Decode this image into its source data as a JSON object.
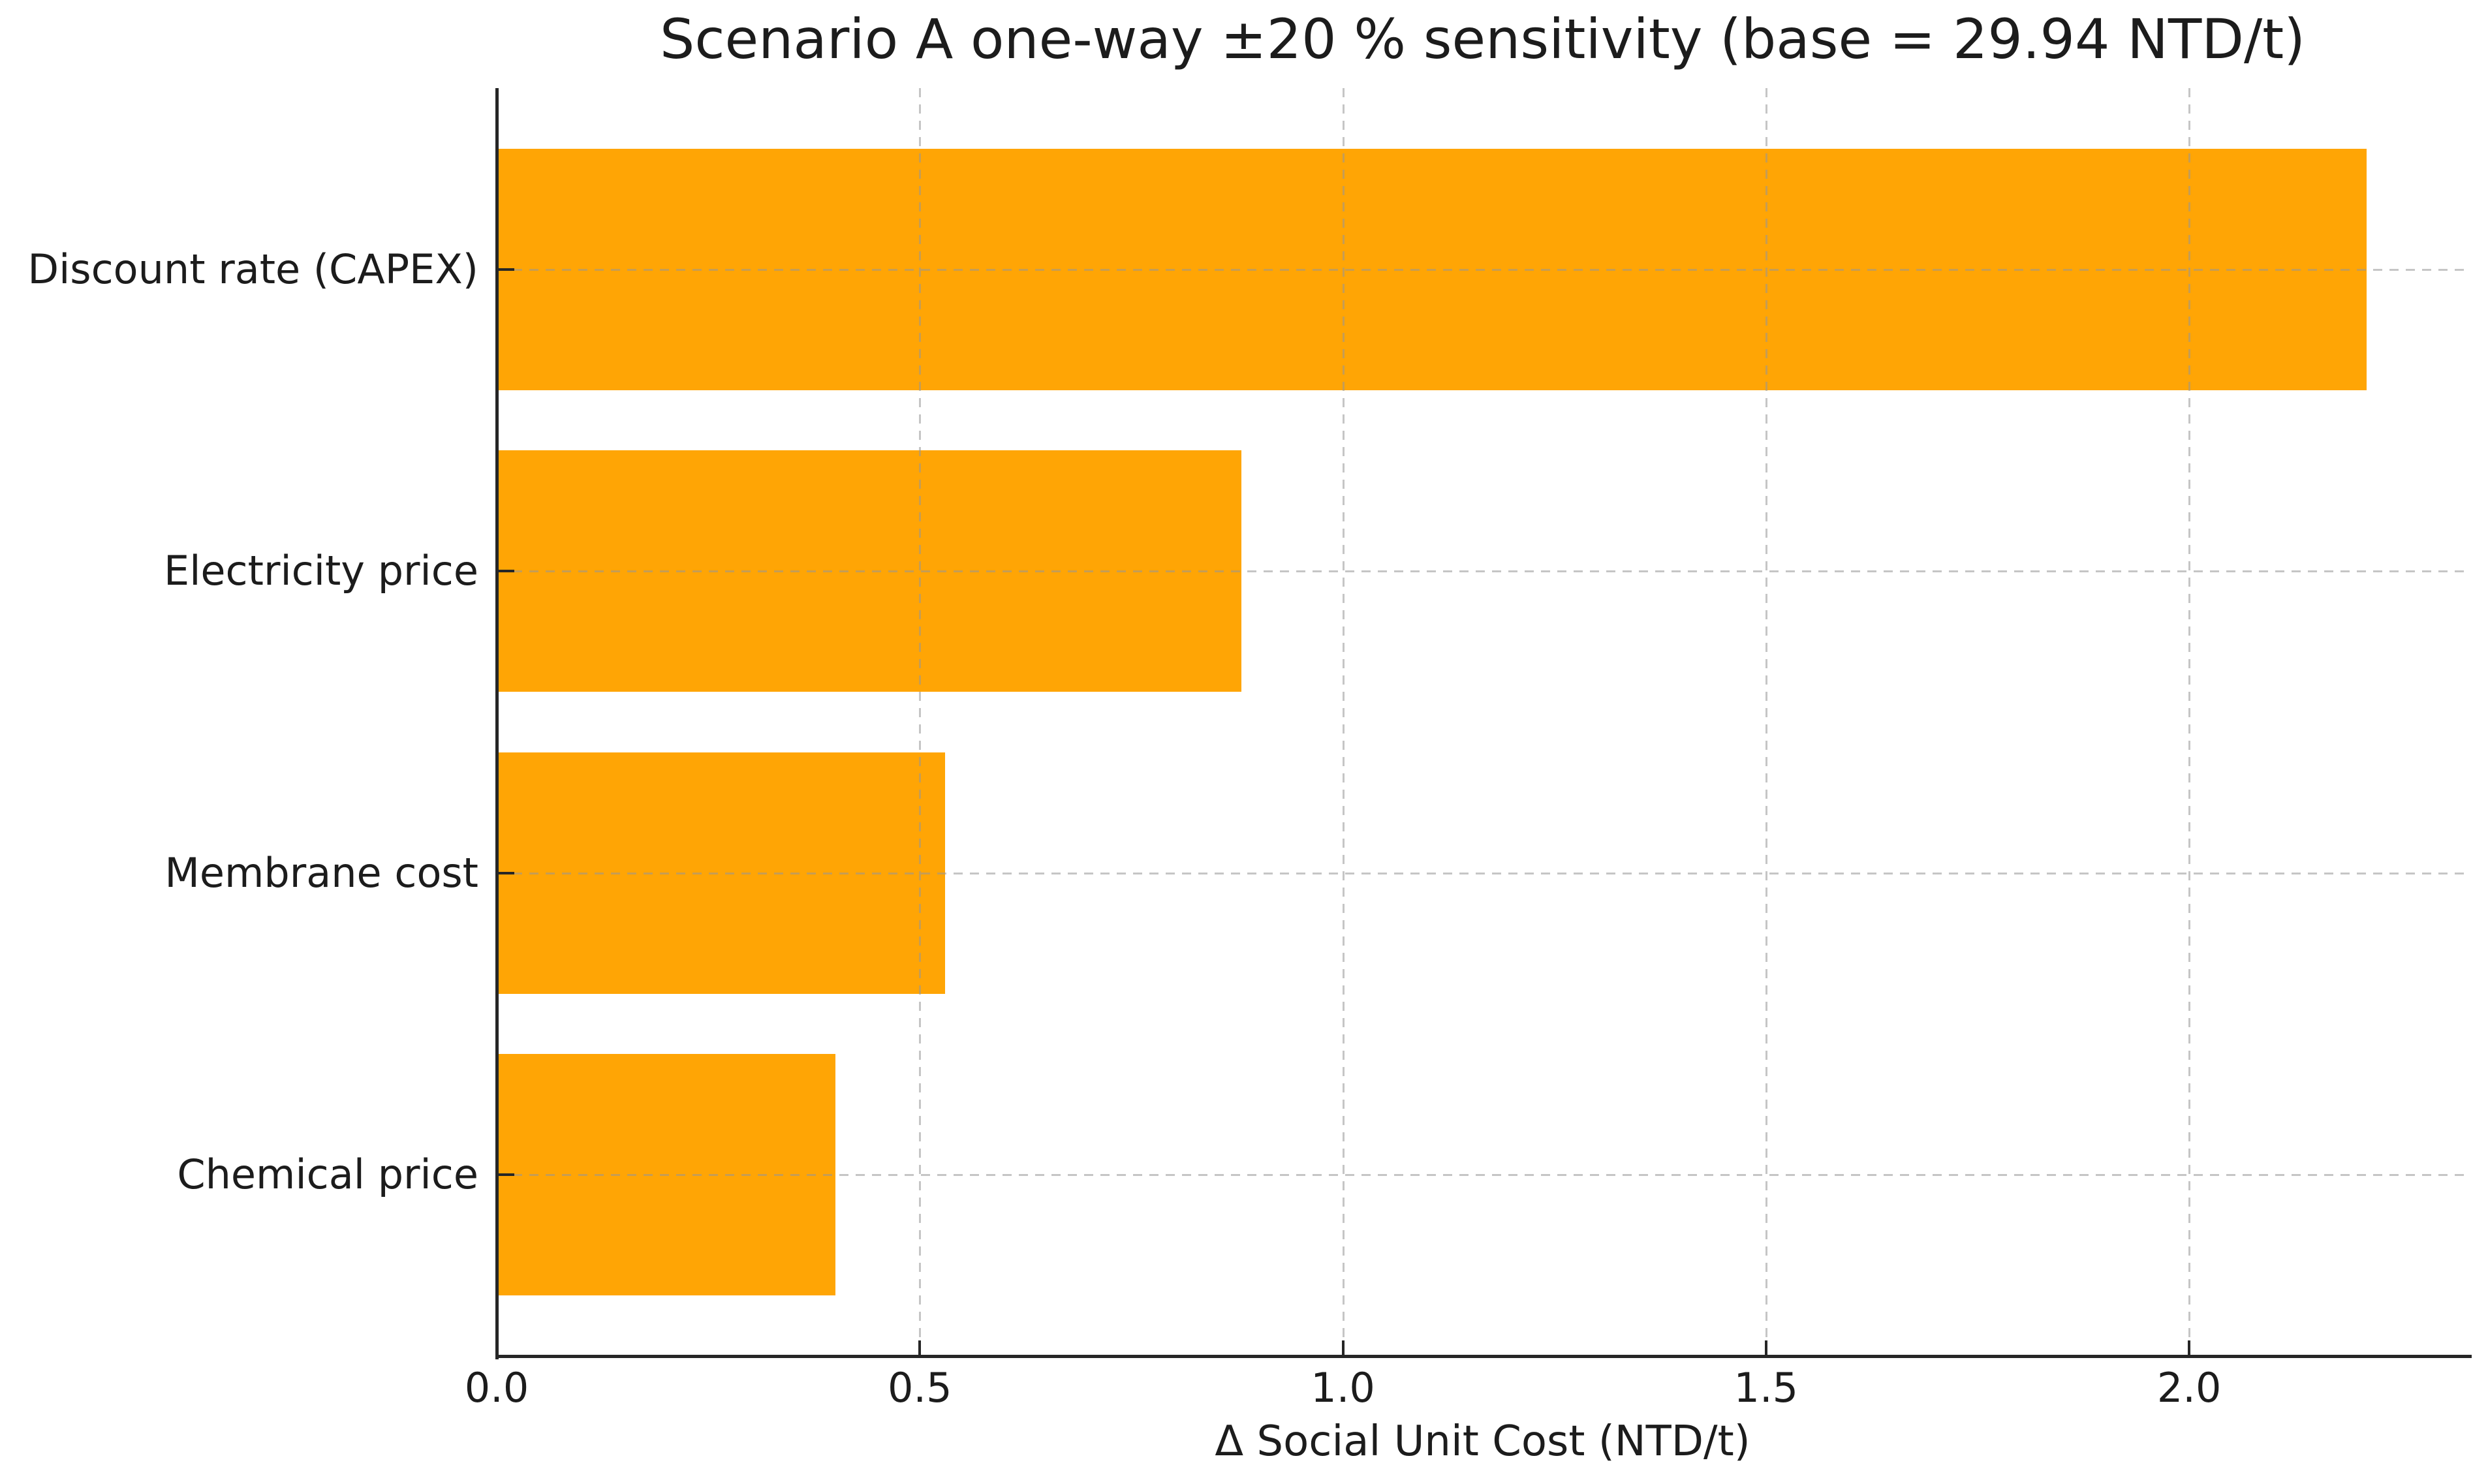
{
  "chart_data": {
    "type": "bar",
    "orientation": "horizontal",
    "title": "Scenario A one-way ±20 % sensitivity (base = 29.94 NTD/t)",
    "xlabel": "Δ Social Unit Cost (NTD/t)",
    "ylabel": "",
    "categories": [
      "Discount rate (CAPEX)",
      "Electricity price",
      "Membrane cost",
      "Chemical price"
    ],
    "values": [
      2.21,
      0.88,
      0.53,
      0.4
    ],
    "xlim": [
      0,
      2.33
    ],
    "xticks": [
      0,
      0.5,
      1.0,
      1.5,
      2.0
    ],
    "xtick_decimals": 1,
    "grid": true,
    "grid_style": "dashed",
    "legend": null,
    "bar_color": "#ffa505",
    "bar_height_fraction": 0.8
  },
  "colors": {
    "background": "#ffffff",
    "spine": "#262626",
    "grid": "#969696",
    "text": "#1c1c1c"
  }
}
